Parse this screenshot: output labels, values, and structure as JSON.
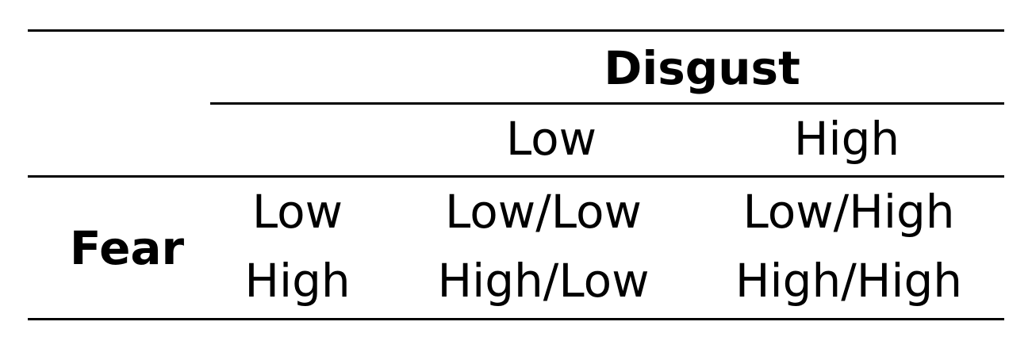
{
  "table": {
    "column_group_header": "Disgust",
    "row_group_header": "Fear",
    "column_headers": [
      "Low",
      "High"
    ],
    "row_headers": [
      "Low",
      "High"
    ],
    "cells": [
      [
        "Low/Low",
        "Low/High"
      ],
      [
        "High/Low",
        "High/High"
      ]
    ]
  }
}
